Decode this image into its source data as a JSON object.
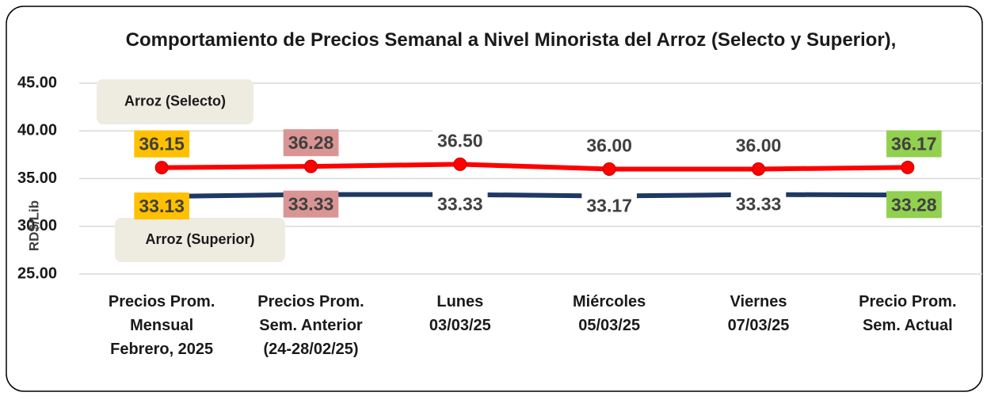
{
  "chart_data": {
    "type": "line",
    "title": "Comportamiento  de Precios Semanal a Nivel Minorista del Arroz (Selecto y Superior),",
    "y_label": "RD$/Lib",
    "categories": [
      "Precios Prom.\nMensual\nFebrero, 2025",
      "Precios Prom.\nSem. Anterior\n(24-28/02/25)",
      "Lunes\n03/03/25",
      "Miércoles\n05/03/25",
      "Viernes\n07/03/25",
      "Precio Prom.\nSem. Actual"
    ],
    "series": [
      {
        "name": "Arroz (Selecto)",
        "color": "#ff0000",
        "values": [
          36.15,
          36.28,
          36.5,
          36.0,
          36.0,
          36.17
        ],
        "value_labels": [
          "36.15",
          "36.28",
          "36.50",
          "36.00",
          "36.00",
          "36.17"
        ]
      },
      {
        "name": "Arroz (Superior)",
        "color": "#1f3864",
        "values": [
          33.13,
          33.33,
          33.33,
          33.17,
          33.33,
          33.28
        ],
        "value_labels": [
          "33.13",
          "33.33",
          "33.33",
          "33.17",
          "33.33",
          "33.28"
        ]
      }
    ],
    "label_colors": [
      "#ffc000",
      "#d99594",
      "#ffffff",
      "#ffffff",
      "#ffffff",
      "#92d050"
    ],
    "ylim": [
      25,
      45
    ],
    "yticks": [
      {
        "value": 25,
        "label": "25.00"
      },
      {
        "value": 30,
        "label": "30.00"
      },
      {
        "value": 35,
        "label": "35.00"
      },
      {
        "value": 40,
        "label": "40.00"
      },
      {
        "value": 45,
        "label": "45.00"
      }
    ],
    "grid": true
  }
}
